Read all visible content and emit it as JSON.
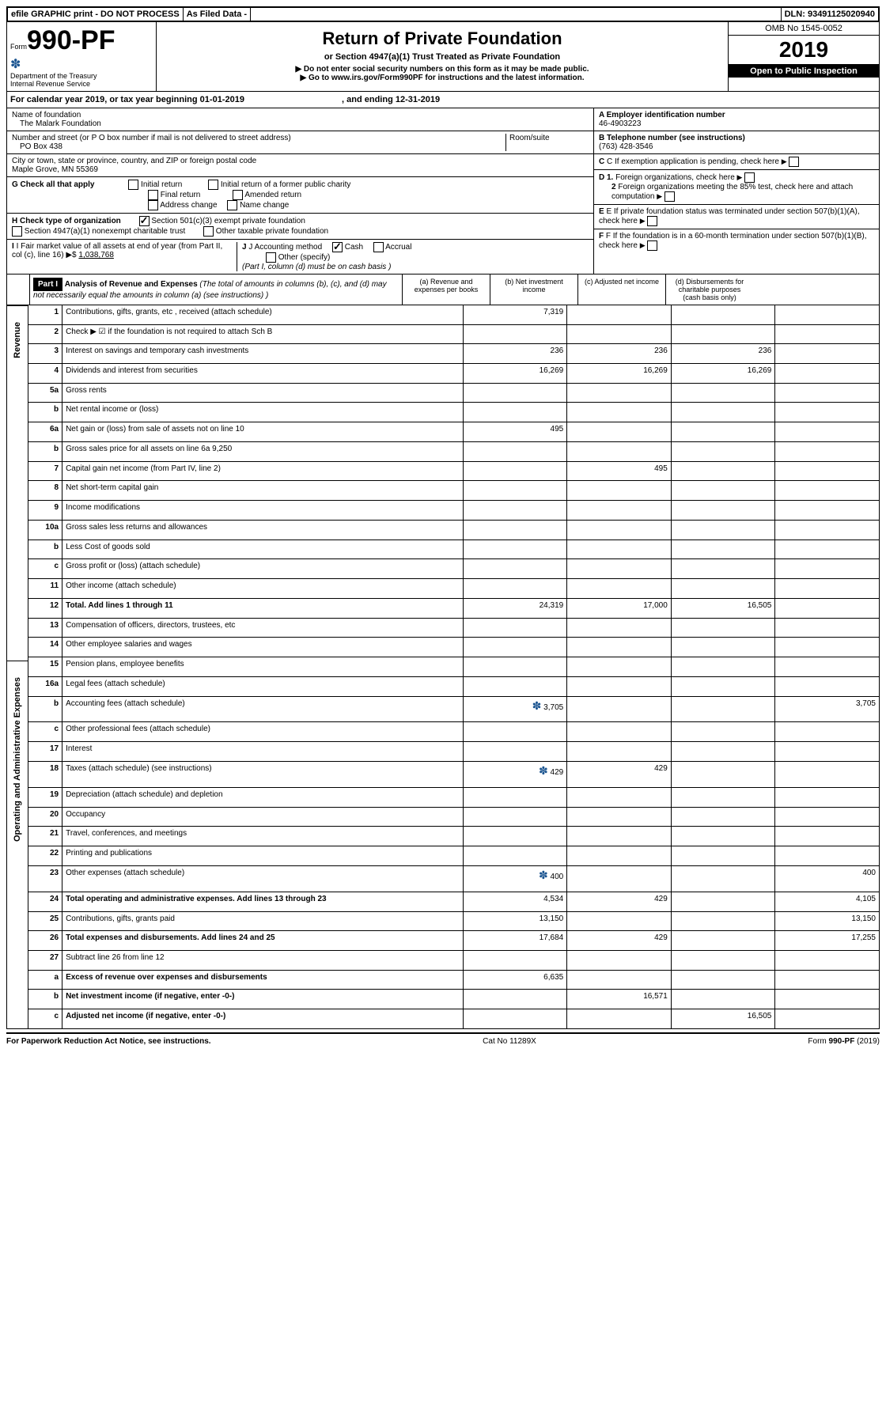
{
  "topbar": {
    "efile": "efile GRAPHIC print - DO NOT PROCESS",
    "asfiled": "As Filed Data -",
    "dln_label": "DLN:",
    "dln": "93491125020940"
  },
  "header": {
    "form_label": "Form",
    "form_number": "990-PF",
    "dept": "Department of the Treasury",
    "irs": "Internal Revenue Service",
    "title": "Return of Private Foundation",
    "subtitle": "or Section 4947(a)(1) Trust Treated as Private Foundation",
    "warn1": "▶ Do not enter social security numbers on this form as it may be made public.",
    "warn2": "▶ Go to www.irs.gov/Form990PF for instructions and the latest information.",
    "omb_label": "OMB No",
    "omb": "1545-0052",
    "year": "2019",
    "open": "Open to Public Inspection"
  },
  "calendar": {
    "text1": "For calendar year 2019, or tax year beginning",
    "begin": "01-01-2019",
    "text2": ", and ending",
    "end": "12-31-2019"
  },
  "info": {
    "name_label": "Name of foundation",
    "name": "The Malark Foundation",
    "addr_label": "Number and street (or P O  box number if mail is not delivered to street address)",
    "addr": "PO Box 438",
    "room_label": "Room/suite",
    "city_label": "City or town, state or province, country, and ZIP or foreign postal code",
    "city": "Maple Grove, MN  55369",
    "a_label": "A Employer identification number",
    "a_val": "46-4903223",
    "b_label": "B Telephone number (see instructions)",
    "b_val": "(763) 428-3546",
    "c_label": "C If exemption application is pending, check here",
    "d1": "D 1. Foreign organizations, check here",
    "d2": "2 Foreign organizations meeting the 85% test, check here and attach computation",
    "e_label": "E  If private foundation status was terminated under section 507(b)(1)(A), check here",
    "f_label": "F  If the foundation is in a 60-month termination under section 507(b)(1)(B), check here"
  },
  "g": {
    "label": "G Check all that apply",
    "opts": [
      "Initial return",
      "Initial return of a former public charity",
      "Final return",
      "Amended return",
      "Address change",
      "Name change"
    ]
  },
  "h": {
    "label": "H Check type of organization",
    "opt1": "Section 501(c)(3) exempt private foundation",
    "opt2": "Section 4947(a)(1) nonexempt charitable trust",
    "opt3": "Other taxable private foundation"
  },
  "i": {
    "label": "I Fair market value of all assets at end of year (from Part II, col  (c), line 16)",
    "arrow": "▶$",
    "val": "1,038,768"
  },
  "j": {
    "label": "J Accounting method",
    "cash": "Cash",
    "accrual": "Accrual",
    "other": "Other (specify)",
    "note": "(Part I, column (d) must be on cash basis )"
  },
  "part1": {
    "label": "Part I",
    "title": "Analysis of Revenue and Expenses",
    "note": "(The total of amounts in columns (b), (c), and (d) may not necessarily equal the amounts in column (a) (see instructions) )",
    "col_a": "(a)  Revenue and expenses per books",
    "col_b": "(b) Net investment income",
    "col_c": "(c) Adjusted net income",
    "col_d": "(d) Disbursements for charitable purposes (cash basis only)"
  },
  "sides": {
    "revenue": "Revenue",
    "expenses": "Operating and Administrative Expenses"
  },
  "rows": [
    {
      "n": "1",
      "label": "Contributions, gifts, grants, etc , received (attach schedule)",
      "a": "7,319",
      "b": "",
      "c": "",
      "d": ""
    },
    {
      "n": "2",
      "label": "Check ▶ ☑ if the foundation is not required to attach Sch  B",
      "a": "",
      "b": "",
      "c": "",
      "d": ""
    },
    {
      "n": "3",
      "label": "Interest on savings and temporary cash investments",
      "a": "236",
      "b": "236",
      "c": "236",
      "d": ""
    },
    {
      "n": "4",
      "label": "Dividends and interest from securities",
      "a": "16,269",
      "b": "16,269",
      "c": "16,269",
      "d": ""
    },
    {
      "n": "5a",
      "label": "Gross rents",
      "a": "",
      "b": "",
      "c": "",
      "d": ""
    },
    {
      "n": "b",
      "label": "Net rental income or (loss)",
      "a": "",
      "b": "",
      "c": "",
      "d": ""
    },
    {
      "n": "6a",
      "label": "Net gain or (loss) from sale of assets not on line 10",
      "a": "495",
      "b": "",
      "c": "",
      "d": ""
    },
    {
      "n": "b",
      "label": "Gross sales price for all assets on line 6a           9,250",
      "a": "",
      "b": "",
      "c": "",
      "d": ""
    },
    {
      "n": "7",
      "label": "Capital gain net income (from Part IV, line 2)",
      "a": "",
      "b": "495",
      "c": "",
      "d": ""
    },
    {
      "n": "8",
      "label": "Net short-term capital gain",
      "a": "",
      "b": "",
      "c": "",
      "d": ""
    },
    {
      "n": "9",
      "label": "Income modifications",
      "a": "",
      "b": "",
      "c": "",
      "d": ""
    },
    {
      "n": "10a",
      "label": "Gross sales less returns and allowances",
      "a": "",
      "b": "",
      "c": "",
      "d": ""
    },
    {
      "n": "b",
      "label": "Less  Cost of goods sold",
      "a": "",
      "b": "",
      "c": "",
      "d": ""
    },
    {
      "n": "c",
      "label": "Gross profit or (loss) (attach schedule)",
      "a": "",
      "b": "",
      "c": "",
      "d": ""
    },
    {
      "n": "11",
      "label": "Other income (attach schedule)",
      "a": "",
      "b": "",
      "c": "",
      "d": ""
    },
    {
      "n": "12",
      "label": "Total. Add lines 1 through 11",
      "a": "24,319",
      "b": "17,000",
      "c": "16,505",
      "d": "",
      "bold": true
    },
    {
      "n": "13",
      "label": "Compensation of officers, directors, trustees, etc",
      "a": "",
      "b": "",
      "c": "",
      "d": ""
    },
    {
      "n": "14",
      "label": "Other employee salaries and wages",
      "a": "",
      "b": "",
      "c": "",
      "d": ""
    },
    {
      "n": "15",
      "label": "Pension plans, employee benefits",
      "a": "",
      "b": "",
      "c": "",
      "d": ""
    },
    {
      "n": "16a",
      "label": "Legal fees (attach schedule)",
      "a": "",
      "b": "",
      "c": "",
      "d": ""
    },
    {
      "n": "b",
      "label": "Accounting fees (attach schedule)",
      "icon": true,
      "a": "3,705",
      "b": "",
      "c": "",
      "d": "3,705"
    },
    {
      "n": "c",
      "label": "Other professional fees (attach schedule)",
      "a": "",
      "b": "",
      "c": "",
      "d": ""
    },
    {
      "n": "17",
      "label": "Interest",
      "a": "",
      "b": "",
      "c": "",
      "d": ""
    },
    {
      "n": "18",
      "label": "Taxes (attach schedule) (see instructions)",
      "icon": true,
      "a": "429",
      "b": "429",
      "c": "",
      "d": ""
    },
    {
      "n": "19",
      "label": "Depreciation (attach schedule) and depletion",
      "a": "",
      "b": "",
      "c": "",
      "d": ""
    },
    {
      "n": "20",
      "label": "Occupancy",
      "a": "",
      "b": "",
      "c": "",
      "d": ""
    },
    {
      "n": "21",
      "label": "Travel, conferences, and meetings",
      "a": "",
      "b": "",
      "c": "",
      "d": ""
    },
    {
      "n": "22",
      "label": "Printing and publications",
      "a": "",
      "b": "",
      "c": "",
      "d": ""
    },
    {
      "n": "23",
      "label": "Other expenses (attach schedule)",
      "icon": true,
      "a": "400",
      "b": "",
      "c": "",
      "d": "400"
    },
    {
      "n": "24",
      "label": "Total operating and administrative expenses. Add lines 13 through 23",
      "a": "4,534",
      "b": "429",
      "c": "",
      "d": "4,105",
      "bold": true
    },
    {
      "n": "25",
      "label": "Contributions, gifts, grants paid",
      "a": "13,150",
      "b": "",
      "c": "",
      "d": "13,150"
    },
    {
      "n": "26",
      "label": "Total expenses and disbursements. Add lines 24 and 25",
      "a": "17,684",
      "b": "429",
      "c": "",
      "d": "17,255",
      "bold": true
    },
    {
      "n": "27",
      "label": "Subtract line 26 from line 12",
      "a": "",
      "b": "",
      "c": "",
      "d": ""
    },
    {
      "n": "a",
      "label": "Excess of revenue over expenses and disbursements",
      "a": "6,635",
      "b": "",
      "c": "",
      "d": "",
      "bold": true
    },
    {
      "n": "b",
      "label": "Net investment income (if negative, enter -0-)",
      "a": "",
      "b": "16,571",
      "c": "",
      "d": "",
      "bold": true
    },
    {
      "n": "c",
      "label": "Adjusted net income (if negative, enter -0-)",
      "a": "",
      "b": "",
      "c": "16,505",
      "d": "",
      "bold": true
    }
  ],
  "footer": {
    "left": "For Paperwork Reduction Act Notice, see instructions.",
    "mid": "Cat  No  11289X",
    "right": "Form 990-PF (2019)"
  }
}
